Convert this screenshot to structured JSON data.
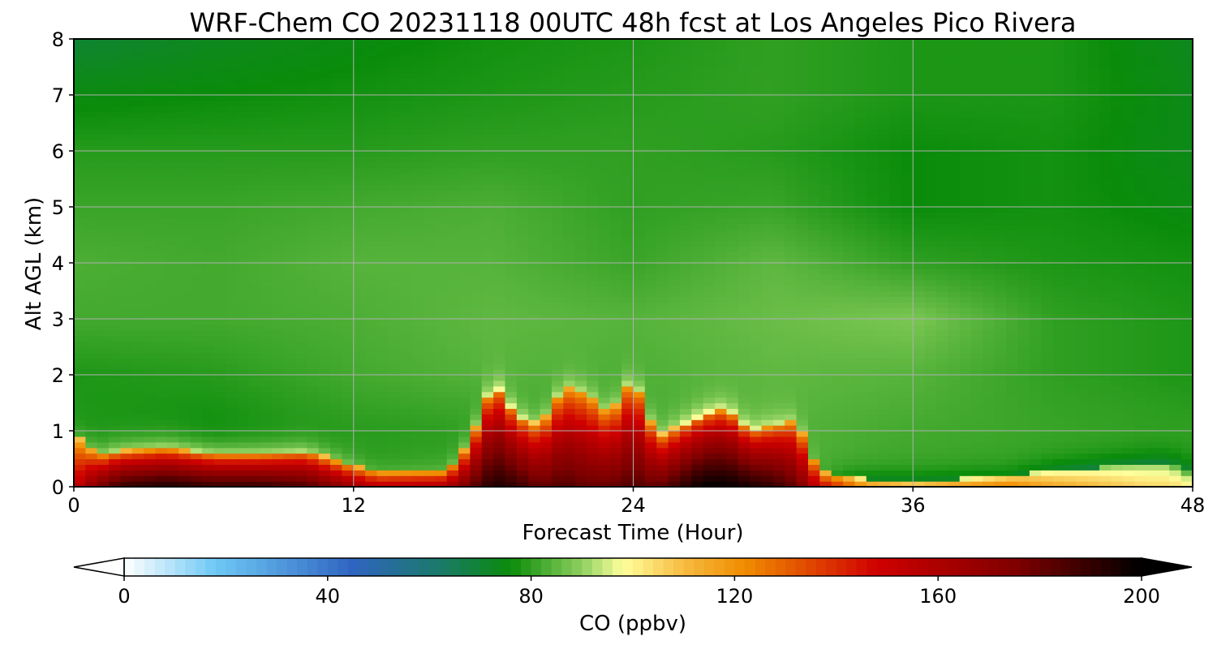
{
  "chart_data": {
    "type": "heatmap",
    "title": "WRF-Chem CO  20231118 00UTC 48h fcst at Los Angeles Pico Rivera",
    "xlabel": "Forecast Time (Hour)",
    "ylabel": "Alt AGL (km)",
    "xlim": [
      0,
      48
    ],
    "ylim": [
      0,
      8
    ],
    "xticks": [
      0,
      12,
      24,
      36,
      48
    ],
    "yticks": [
      0,
      1,
      2,
      3,
      4,
      5,
      6,
      7,
      8
    ],
    "grid": true,
    "colorbar": {
      "label": "CO  (ppbv)",
      "min": 0,
      "max": 200,
      "ticks": [
        0,
        40,
        80,
        120,
        160,
        200
      ],
      "extend": "both",
      "stops": [
        {
          "value": 0,
          "color": "#ffffff"
        },
        {
          "value": 18,
          "color": "#6ec8f5"
        },
        {
          "value": 45,
          "color": "#2f64c0"
        },
        {
          "value": 62,
          "color": "#1a7a6a"
        },
        {
          "value": 76,
          "color": "#0a8c0a"
        },
        {
          "value": 90,
          "color": "#8fd060"
        },
        {
          "value": 98,
          "color": "#ffff9c"
        },
        {
          "value": 110,
          "color": "#f7bb40"
        },
        {
          "value": 122,
          "color": "#f08c00"
        },
        {
          "value": 148,
          "color": "#d00000"
        },
        {
          "value": 175,
          "color": "#800000"
        },
        {
          "value": 200,
          "color": "#000000"
        }
      ]
    },
    "surface_layer": {
      "hours": [
        0,
        1,
        2,
        4,
        6,
        8,
        10,
        12,
        13,
        16,
        17,
        18,
        19,
        20,
        21,
        22,
        23,
        24,
        25,
        27,
        28,
        29,
        30,
        31,
        32,
        34,
        36,
        38,
        40,
        42,
        44,
        46,
        47,
        48
      ],
      "layer_top_km": [
        1.0,
        0.6,
        0.65,
        0.7,
        0.6,
        0.6,
        0.65,
        0.4,
        0.3,
        0.3,
        0.8,
        1.9,
        1.3,
        1.1,
        1.8,
        1.7,
        1.3,
        2.0,
        0.9,
        1.3,
        1.4,
        1.0,
        1.1,
        1.2,
        0.3,
        0.15,
        0.1,
        0.15,
        0.2,
        0.3,
        0.35,
        0.4,
        0.4,
        0.2
      ],
      "peak_value_ppbv": [
        150,
        175,
        190,
        195,
        190,
        190,
        185,
        165,
        155,
        160,
        180,
        195,
        190,
        180,
        185,
        180,
        180,
        185,
        180,
        200,
        200,
        195,
        190,
        180,
        150,
        120,
        115,
        120,
        125,
        115,
        110,
        105,
        105,
        100
      ]
    },
    "upper_field": {
      "hours": [
        0,
        6,
        12,
        18,
        24,
        30,
        36,
        42,
        48
      ],
      "altitudes_km": [
        1,
        2,
        3,
        4,
        5,
        6,
        7,
        8
      ],
      "values_ppbv": [
        [
          78,
          76,
          79,
          80,
          82,
          84,
          82,
          81,
          80
        ],
        [
          78,
          79,
          82,
          84,
          83,
          85,
          84,
          80,
          78
        ],
        [
          82,
          82,
          83,
          85,
          84,
          86,
          88,
          80,
          78
        ],
        [
          83,
          82,
          84,
          84,
          81,
          85,
          80,
          78,
          77
        ],
        [
          81,
          81,
          82,
          83,
          80,
          81,
          76,
          77,
          75
        ],
        [
          79,
          79,
          79,
          80,
          80,
          79,
          76,
          77,
          74
        ],
        [
          75,
          76,
          77,
          78,
          79,
          80,
          78,
          78,
          74
        ],
        [
          70,
          73,
          75,
          77,
          78,
          80,
          78,
          78,
          73
        ]
      ]
    }
  }
}
